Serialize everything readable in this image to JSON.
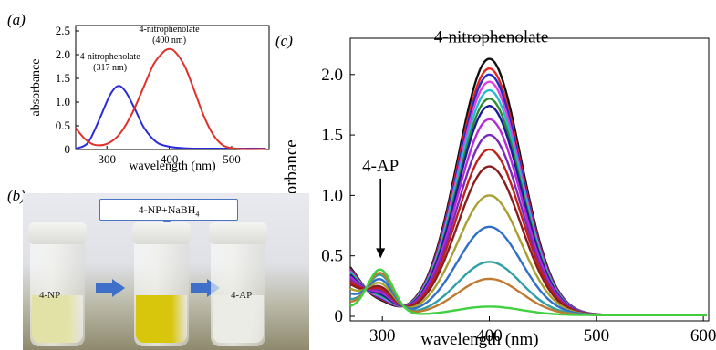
{
  "panel_labels": {
    "a": "(a)",
    "b": "(b)",
    "c": "(c)"
  },
  "chart_data": [
    {
      "type": "line",
      "id": "a",
      "xlabel": "wavelength (nm)",
      "ylabel": "absorbance",
      "xlim": [
        250,
        560
      ],
      "ylim": [
        0,
        2.5
      ],
      "xticks": [
        300,
        400,
        500
      ],
      "yticks": [
        0,
        0.5,
        1.0,
        1.5,
        2.0,
        2.5
      ],
      "ytick_labels": [
        "0",
        "0.5",
        "1.0",
        "1.5",
        "2.0",
        "2.5"
      ],
      "series": [
        {
          "color": "#2b2bd8",
          "x": [
            250,
            270,
            290,
            305,
            318,
            330,
            345,
            360,
            380,
            400,
            420,
            440,
            470,
            500,
            530,
            555
          ],
          "y": [
            0.02,
            0.15,
            0.7,
            1.15,
            1.34,
            1.22,
            0.85,
            0.45,
            0.15,
            0.06,
            0.03,
            0.02,
            0.02,
            0.02,
            0.02,
            0.02
          ]
        },
        {
          "color": "#e0302a",
          "x": [
            250,
            265,
            280,
            300,
            320,
            340,
            360,
            375,
            390,
            400,
            410,
            425,
            440,
            455,
            470,
            485,
            500,
            520,
            555
          ],
          "y": [
            0.45,
            0.22,
            0.1,
            0.12,
            0.32,
            0.75,
            1.35,
            1.8,
            2.05,
            2.12,
            2.05,
            1.75,
            1.25,
            0.72,
            0.32,
            0.1,
            0.03,
            0.01,
            0.01
          ]
        }
      ],
      "annotations": [
        {
          "text": "4-nitrophenolate",
          "sub": "(400 nm)",
          "x": 400,
          "y": 2.48
        },
        {
          "text": "4-nitrophenolate",
          "sub": "(317 nm)",
          "x": 305,
          "y": 1.9
        }
      ]
    },
    {
      "type": "line",
      "id": "c",
      "xlabel": "wavelength (nm)",
      "ylabel": "absorbance",
      "xlim": [
        270,
        605
      ],
      "ylim": [
        0,
        2.3
      ],
      "xticks": [
        300,
        400,
        500,
        600
      ],
      "yticks": [
        0,
        0.5,
        1.0,
        1.5,
        2.0
      ],
      "ytick_labels": [
        "0",
        "0.5",
        "1.0",
        "1.5",
        "2.0"
      ],
      "peak_x": 400,
      "series": [
        {
          "color": "#111111",
          "peak": 2.12
        },
        {
          "color": "#e8241c",
          "peak": 2.04
        },
        {
          "color": "#2030c8",
          "peak": 1.99
        },
        {
          "color": "#e040e0",
          "peak": 1.93
        },
        {
          "color": "#22bcd0",
          "peak": 1.86
        },
        {
          "color": "#2e8a2e",
          "peak": 1.79
        },
        {
          "color": "#1a1a9a",
          "peak": 1.73
        },
        {
          "color": "#b82ad8",
          "peak": 1.62
        },
        {
          "color": "#7a2ab8",
          "peak": 1.49
        },
        {
          "color": "#c02020",
          "peak": 1.37
        },
        {
          "color": "#8a1e1e",
          "peak": 1.23
        },
        {
          "color": "#a8a030",
          "peak": 0.99
        },
        {
          "color": "#3070c8",
          "peak": 0.73
        },
        {
          "color": "#30a0a8",
          "peak": 0.44
        },
        {
          "color": "#c07a30",
          "peak": 0.3
        },
        {
          "color": "#40d040",
          "peak": 0.07
        }
      ],
      "annotations": [
        {
          "text": "4-nitrophenolate",
          "x": 400,
          "y": 2.28
        },
        {
          "text": "4-AP",
          "x": 300,
          "y": 1.2
        }
      ]
    }
  ],
  "photo": {
    "box_text": "4-NP+NaBH",
    "box_sub": "4",
    "vials": [
      {
        "label": "4-NP",
        "color": "#e3e2a6"
      },
      {
        "label": "",
        "color": "#d8c60c"
      },
      {
        "label": "4-AP",
        "color": "#ecece6"
      }
    ]
  }
}
